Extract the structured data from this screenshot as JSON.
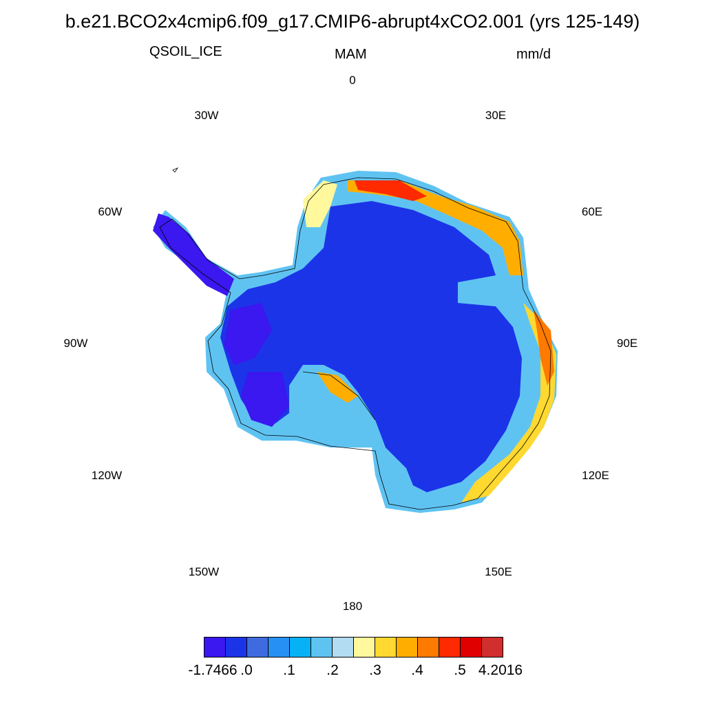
{
  "title": "b.e21.BCO2x4cmip6.f09_g17.CMIP6-abrupt4xCO2.001 (yrs 125-149)",
  "variable": "QSOIL_ICE",
  "season": "MAM",
  "units": "mm/d",
  "longitude_labels": [
    "0",
    "30E",
    "60E",
    "90E",
    "120E",
    "150E",
    "180",
    "150W",
    "120W",
    "90W",
    "60W",
    "30W"
  ],
  "colorbar": {
    "colors": [
      "#3b17f0",
      "#1c34e8",
      "#3f6be0",
      "#2690f5",
      "#06b2f5",
      "#5fc3f2",
      "#b2dcf2",
      "#fff89c",
      "#ffd830",
      "#ffae00",
      "#ff7a00",
      "#ff2a00",
      "#e00000",
      "#d12e2e"
    ],
    "labels": [
      "-1.7466",
      ".0",
      ".1",
      ".2",
      ".3",
      ".4",
      ".5",
      "4.2016"
    ]
  }
}
